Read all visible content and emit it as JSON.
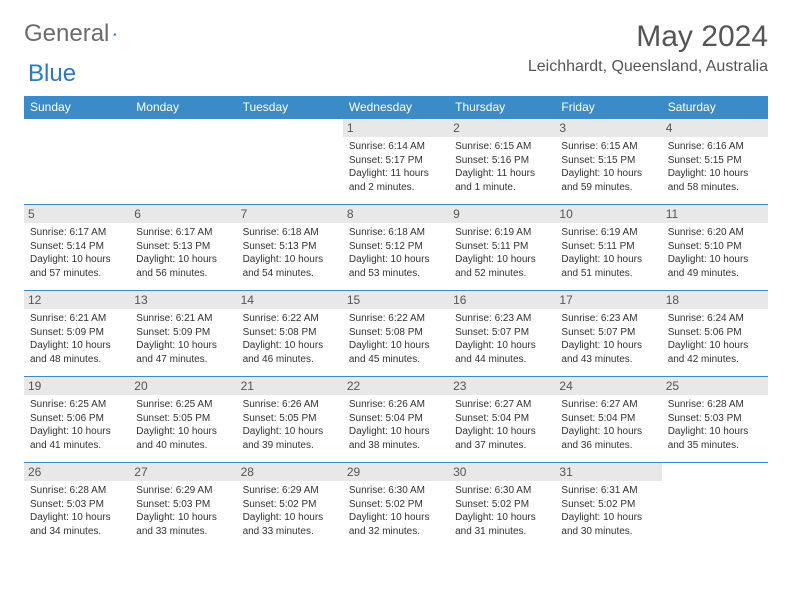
{
  "logo": {
    "part1": "General",
    "part2": "Blue"
  },
  "title": "May 2024",
  "location": "Leichhardt, Queensland, Australia",
  "colors": {
    "header_bg": "#3b8bc9",
    "header_text": "#ffffff",
    "daynum_bg": "#e8e8e8",
    "border": "#3b8bc9",
    "logo_gray": "#6b6b6b",
    "logo_blue": "#2a7bbf"
  },
  "dow": [
    "Sunday",
    "Monday",
    "Tuesday",
    "Wednesday",
    "Thursday",
    "Friday",
    "Saturday"
  ],
  "weeks": [
    [
      null,
      null,
      null,
      {
        "n": "1",
        "sr": "6:14 AM",
        "ss": "5:17 PM",
        "dl": "11 hours and 2 minutes."
      },
      {
        "n": "2",
        "sr": "6:15 AM",
        "ss": "5:16 PM",
        "dl": "11 hours and 1 minute."
      },
      {
        "n": "3",
        "sr": "6:15 AM",
        "ss": "5:15 PM",
        "dl": "10 hours and 59 minutes."
      },
      {
        "n": "4",
        "sr": "6:16 AM",
        "ss": "5:15 PM",
        "dl": "10 hours and 58 minutes."
      }
    ],
    [
      {
        "n": "5",
        "sr": "6:17 AM",
        "ss": "5:14 PM",
        "dl": "10 hours and 57 minutes."
      },
      {
        "n": "6",
        "sr": "6:17 AM",
        "ss": "5:13 PM",
        "dl": "10 hours and 56 minutes."
      },
      {
        "n": "7",
        "sr": "6:18 AM",
        "ss": "5:13 PM",
        "dl": "10 hours and 54 minutes."
      },
      {
        "n": "8",
        "sr": "6:18 AM",
        "ss": "5:12 PM",
        "dl": "10 hours and 53 minutes."
      },
      {
        "n": "9",
        "sr": "6:19 AM",
        "ss": "5:11 PM",
        "dl": "10 hours and 52 minutes."
      },
      {
        "n": "10",
        "sr": "6:19 AM",
        "ss": "5:11 PM",
        "dl": "10 hours and 51 minutes."
      },
      {
        "n": "11",
        "sr": "6:20 AM",
        "ss": "5:10 PM",
        "dl": "10 hours and 49 minutes."
      }
    ],
    [
      {
        "n": "12",
        "sr": "6:21 AM",
        "ss": "5:09 PM",
        "dl": "10 hours and 48 minutes."
      },
      {
        "n": "13",
        "sr": "6:21 AM",
        "ss": "5:09 PM",
        "dl": "10 hours and 47 minutes."
      },
      {
        "n": "14",
        "sr": "6:22 AM",
        "ss": "5:08 PM",
        "dl": "10 hours and 46 minutes."
      },
      {
        "n": "15",
        "sr": "6:22 AM",
        "ss": "5:08 PM",
        "dl": "10 hours and 45 minutes."
      },
      {
        "n": "16",
        "sr": "6:23 AM",
        "ss": "5:07 PM",
        "dl": "10 hours and 44 minutes."
      },
      {
        "n": "17",
        "sr": "6:23 AM",
        "ss": "5:07 PM",
        "dl": "10 hours and 43 minutes."
      },
      {
        "n": "18",
        "sr": "6:24 AM",
        "ss": "5:06 PM",
        "dl": "10 hours and 42 minutes."
      }
    ],
    [
      {
        "n": "19",
        "sr": "6:25 AM",
        "ss": "5:06 PM",
        "dl": "10 hours and 41 minutes."
      },
      {
        "n": "20",
        "sr": "6:25 AM",
        "ss": "5:05 PM",
        "dl": "10 hours and 40 minutes."
      },
      {
        "n": "21",
        "sr": "6:26 AM",
        "ss": "5:05 PM",
        "dl": "10 hours and 39 minutes."
      },
      {
        "n": "22",
        "sr": "6:26 AM",
        "ss": "5:04 PM",
        "dl": "10 hours and 38 minutes."
      },
      {
        "n": "23",
        "sr": "6:27 AM",
        "ss": "5:04 PM",
        "dl": "10 hours and 37 minutes."
      },
      {
        "n": "24",
        "sr": "6:27 AM",
        "ss": "5:04 PM",
        "dl": "10 hours and 36 minutes."
      },
      {
        "n": "25",
        "sr": "6:28 AM",
        "ss": "5:03 PM",
        "dl": "10 hours and 35 minutes."
      }
    ],
    [
      {
        "n": "26",
        "sr": "6:28 AM",
        "ss": "5:03 PM",
        "dl": "10 hours and 34 minutes."
      },
      {
        "n": "27",
        "sr": "6:29 AM",
        "ss": "5:03 PM",
        "dl": "10 hours and 33 minutes."
      },
      {
        "n": "28",
        "sr": "6:29 AM",
        "ss": "5:02 PM",
        "dl": "10 hours and 33 minutes."
      },
      {
        "n": "29",
        "sr": "6:30 AM",
        "ss": "5:02 PM",
        "dl": "10 hours and 32 minutes."
      },
      {
        "n": "30",
        "sr": "6:30 AM",
        "ss": "5:02 PM",
        "dl": "10 hours and 31 minutes."
      },
      {
        "n": "31",
        "sr": "6:31 AM",
        "ss": "5:02 PM",
        "dl": "10 hours and 30 minutes."
      },
      null
    ]
  ],
  "labels": {
    "sunrise": "Sunrise:",
    "sunset": "Sunset:",
    "daylight": "Daylight:"
  }
}
